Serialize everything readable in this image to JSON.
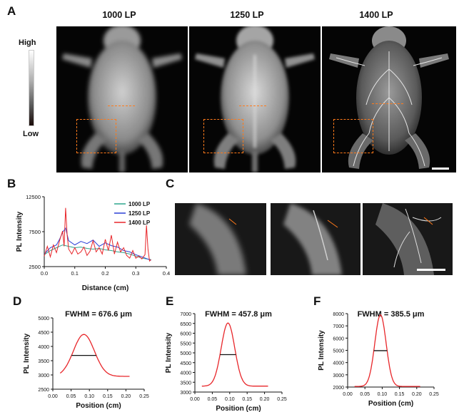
{
  "panel_letters": {
    "a": "A",
    "b": "B",
    "c": "C",
    "d": "D",
    "e": "E",
    "f": "F"
  },
  "panel_a": {
    "titles": [
      "1000 LP",
      "1250 LP",
      "1400 LP"
    ],
    "colorbar": {
      "high": "High",
      "low": "Low"
    },
    "colors": {
      "roi": "#ff7a1a"
    }
  },
  "chart_data": [
    {
      "id": "B",
      "type": "line",
      "xlabel": "Distance (cm)",
      "ylabel": "PL Intensity",
      "xlim": [
        0.0,
        0.4
      ],
      "ylim": [
        2500,
        12500
      ],
      "xticks": [
        0.0,
        0.1,
        0.2,
        0.3,
        0.4
      ],
      "xtick_labels": [
        "0.0",
        "0.1",
        "0.2",
        "0.3",
        "0.4"
      ],
      "yticks": [
        2500,
        7500,
        12500
      ],
      "ytick_labels": [
        "2500",
        "7500",
        "12500"
      ],
      "legend_position": "top-right",
      "series": [
        {
          "name": "1000 LP",
          "color": "#2ca58d",
          "x": [
            0.0,
            0.02,
            0.04,
            0.06,
            0.08,
            0.1,
            0.12,
            0.14,
            0.16,
            0.18,
            0.2,
            0.22,
            0.24,
            0.26,
            0.28,
            0.3,
            0.32,
            0.35
          ],
          "y": [
            4200,
            4800,
            5200,
            5600,
            5400,
            5200,
            5300,
            5100,
            5000,
            5100,
            4900,
            4800,
            4600,
            4500,
            4300,
            4000,
            3700,
            3500
          ]
        },
        {
          "name": "1250 LP",
          "color": "#2b3fd6",
          "x": [
            0.0,
            0.02,
            0.04,
            0.05,
            0.06,
            0.07,
            0.08,
            0.1,
            0.12,
            0.14,
            0.16,
            0.18,
            0.2,
            0.22,
            0.24,
            0.26,
            0.28,
            0.3,
            0.32,
            0.35
          ],
          "y": [
            4300,
            5200,
            5600,
            6400,
            7400,
            8000,
            6200,
            5600,
            6100,
            5800,
            6300,
            5400,
            5900,
            5500,
            5300,
            4800,
            4600,
            4200,
            3900,
            3400
          ]
        },
        {
          "name": "1400 LP",
          "color": "#e8262a",
          "x": [
            0.0,
            0.01,
            0.02,
            0.03,
            0.04,
            0.05,
            0.06,
            0.065,
            0.07,
            0.075,
            0.08,
            0.09,
            0.1,
            0.11,
            0.12,
            0.13,
            0.14,
            0.15,
            0.16,
            0.17,
            0.18,
            0.19,
            0.2,
            0.21,
            0.22,
            0.23,
            0.24,
            0.25,
            0.26,
            0.27,
            0.28,
            0.29,
            0.3,
            0.31,
            0.32,
            0.33,
            0.335,
            0.34,
            0.345,
            0.35
          ],
          "y": [
            4000,
            5400,
            3900,
            5600,
            4500,
            6200,
            7600,
            5400,
            10900,
            7000,
            5000,
            4300,
            5200,
            4300,
            4600,
            5300,
            4100,
            4700,
            6200,
            4600,
            5200,
            4300,
            6400,
            4800,
            7000,
            4300,
            6000,
            4600,
            5200,
            4100,
            3700,
            4800,
            3700,
            4000,
            3600,
            4200,
            8400,
            5000,
            3300,
            3500
          ]
        }
      ]
    },
    {
      "id": "D",
      "type": "line",
      "title": "FWHM = 676.6 μm",
      "xlabel": "Position (cm)",
      "ylabel": "PL Intensity",
      "xlim": [
        0.0,
        0.25
      ],
      "ylim": [
        2500,
        5000
      ],
      "xticks": [
        0.0,
        0.05,
        0.1,
        0.15,
        0.2,
        0.25
      ],
      "xtick_labels": [
        "0.00",
        "0.05",
        "0.10",
        "0.15",
        "0.20",
        "0.25"
      ],
      "yticks": [
        2500,
        3000,
        3500,
        4000,
        4500,
        5000
      ],
      "ytick_labels": [
        "2500",
        "3000",
        "3500",
        "4000",
        "4500",
        "5000"
      ],
      "curve": {
        "baseline": 2950,
        "peak": 4420,
        "center": 0.085,
        "fwhm": 0.06766,
        "x_start": 0.02,
        "x_end": 0.21
      },
      "series": [
        {
          "color": "#e8262a"
        }
      ],
      "fwhm_line_color": "#111111"
    },
    {
      "id": "E",
      "type": "line",
      "title": "FWHM = 457.8 μm",
      "xlabel": "Position (cm)",
      "ylabel": "PL Intensity",
      "xlim": [
        0.0,
        0.25
      ],
      "ylim": [
        3000,
        7000
      ],
      "xticks": [
        0.0,
        0.05,
        0.1,
        0.15,
        0.2,
        0.25
      ],
      "xtick_labels": [
        "0.00",
        "0.05",
        "0.10",
        "0.15",
        "0.20",
        "0.25"
      ],
      "yticks": [
        3000,
        3500,
        4000,
        4500,
        5000,
        5500,
        6000,
        6500,
        7000
      ],
      "ytick_labels": [
        "3000",
        "3500",
        "4000",
        "4500",
        "5000",
        "5500",
        "6000",
        "6500",
        "7000"
      ],
      "curve": {
        "baseline": 3300,
        "peak": 6520,
        "center": 0.095,
        "fwhm": 0.04578,
        "x_start": 0.02,
        "x_end": 0.21
      },
      "series": [
        {
          "color": "#e8262a"
        }
      ],
      "fwhm_line_color": "#111111"
    },
    {
      "id": "F",
      "type": "line",
      "title": "FWHM = 385.5 μm",
      "xlabel": "Position (cm)",
      "ylabel": "PL Intensity",
      "xlim": [
        0.0,
        0.25
      ],
      "ylim": [
        2000,
        8000
      ],
      "xticks": [
        0.0,
        0.05,
        0.1,
        0.15,
        0.2,
        0.25
      ],
      "xtick_labels": [
        "0.00",
        "0.05",
        "0.10",
        "0.15",
        "0.20",
        "0.25"
      ],
      "yticks": [
        2000,
        3000,
        4000,
        5000,
        6000,
        7000,
        8000
      ],
      "ytick_labels": [
        "2000",
        "3000",
        "4000",
        "5000",
        "6000",
        "7000",
        "8000"
      ],
      "curve": {
        "baseline": 2050,
        "peak": 7900,
        "center": 0.095,
        "fwhm": 0.03855,
        "x_start": 0.02,
        "x_end": 0.21
      },
      "series": [
        {
          "color": "#e8262a"
        }
      ],
      "fwhm_line_color": "#111111"
    }
  ]
}
